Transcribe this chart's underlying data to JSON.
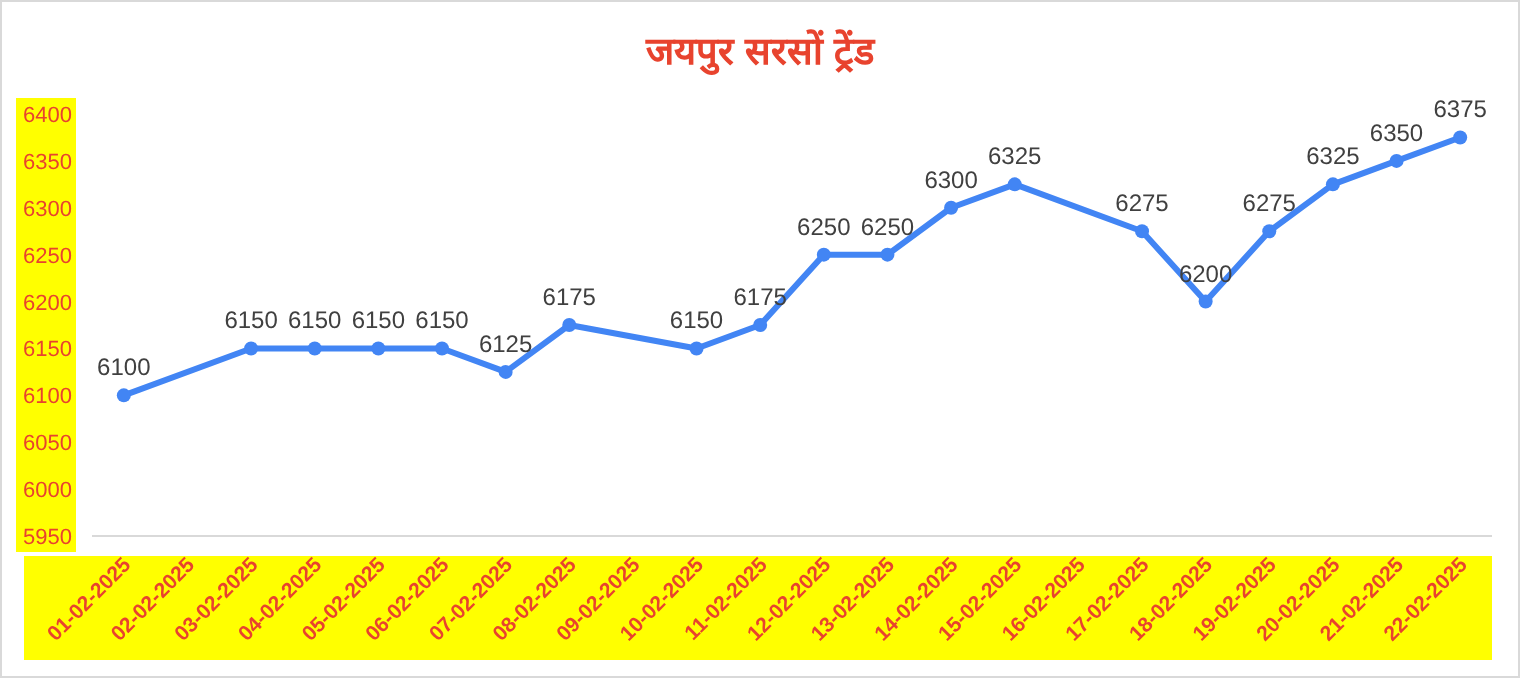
{
  "chart_data": {
    "type": "line",
    "title": "जयपुर सरसों ट्रेंड",
    "categories": [
      "01-02-2025",
      "02-02-2025",
      "03-02-2025",
      "04-02-2025",
      "05-02-2025",
      "06-02-2025",
      "07-02-2025",
      "08-02-2025",
      "09-02-2025",
      "10-02-2025",
      "11-02-2025",
      "12-02-2025",
      "13-02-2025",
      "14-02-2025",
      "15-02-2025",
      "16-02-2025",
      "17-02-2025",
      "18-02-2025",
      "19-02-2025",
      "20-02-2025",
      "21-02-2025",
      "22-02-2025"
    ],
    "series": [
      {
        "color": "#4285f4",
        "values": [
          6100,
          null,
          6150,
          6150,
          6150,
          6150,
          6125,
          6175,
          null,
          6150,
          6175,
          6250,
          6250,
          6300,
          6325,
          null,
          6275,
          6200,
          6275,
          6325,
          6350,
          6375
        ]
      }
    ],
    "ylim": [
      5950,
      6400
    ],
    "yticks": [
      5950,
      6000,
      6050,
      6100,
      6150,
      6200,
      6250,
      6300,
      6350,
      6400
    ],
    "data_labels": true,
    "marker": "circle",
    "line_style": "solid",
    "grid": false
  }
}
